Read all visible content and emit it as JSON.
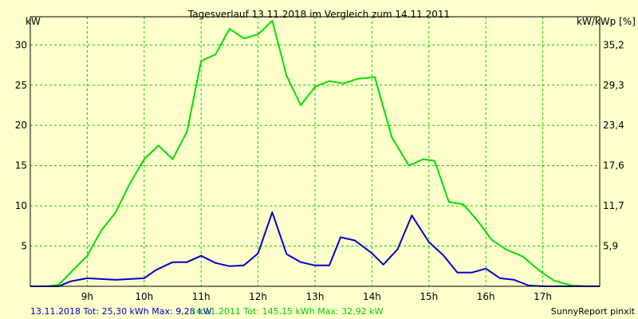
{
  "chart_data": {
    "type": "line",
    "title": "Tagesverlauf 13.11.2018 im Vergleich zum 14.11.2011",
    "ylabel_left": "kW",
    "ylabel_right": "kW/kWp [%]",
    "x_ticks": [
      "9h",
      "10h",
      "11h",
      "12h",
      "13h",
      "14h",
      "15h",
      "16h",
      "17h"
    ],
    "x_tick_values": [
      9,
      10,
      11,
      12,
      13,
      14,
      15,
      16,
      17
    ],
    "xlim": [
      8.0,
      18.0
    ],
    "ylim": [
      0,
      33.5
    ],
    "y_ticks_left": [
      5,
      10,
      15,
      20,
      25,
      30
    ],
    "y_ticks_right": [
      "5,9",
      "11,7",
      "17,6",
      "23,4",
      "29,3",
      "35,2"
    ],
    "grid": true,
    "colors": {
      "background": "#ffffcc",
      "grid": "#00cc00",
      "axis": "#000000"
    },
    "series": [
      {
        "id": "s2011",
        "color": "#00dd00",
        "values": [
          [
            8.0,
            0
          ],
          [
            8.3,
            0
          ],
          [
            8.5,
            0.2
          ],
          [
            8.75,
            2.0
          ],
          [
            9.0,
            3.8
          ],
          [
            9.25,
            7.0
          ],
          [
            9.5,
            9.2
          ],
          [
            9.75,
            12.8
          ],
          [
            10.0,
            15.8
          ],
          [
            10.25,
            17.5
          ],
          [
            10.5,
            15.8
          ],
          [
            10.75,
            19.2
          ],
          [
            11.0,
            28.0
          ],
          [
            11.25,
            28.8
          ],
          [
            11.5,
            32.0
          ],
          [
            11.75,
            30.8
          ],
          [
            12.0,
            31.3
          ],
          [
            12.25,
            33.0
          ],
          [
            12.5,
            26.2
          ],
          [
            12.75,
            22.5
          ],
          [
            13.0,
            24.8
          ],
          [
            13.25,
            25.5
          ],
          [
            13.5,
            25.2
          ],
          [
            13.75,
            25.8
          ],
          [
            14.05,
            26.0
          ],
          [
            14.35,
            18.5
          ],
          [
            14.65,
            15.0
          ],
          [
            14.9,
            15.8
          ],
          [
            15.1,
            15.6
          ],
          [
            15.35,
            10.5
          ],
          [
            15.6,
            10.2
          ],
          [
            15.85,
            8.2
          ],
          [
            16.1,
            5.8
          ],
          [
            16.35,
            4.6
          ],
          [
            16.65,
            3.7
          ],
          [
            16.95,
            1.9
          ],
          [
            17.2,
            0.7
          ],
          [
            17.5,
            0.1
          ],
          [
            17.8,
            0
          ],
          [
            18.0,
            0
          ]
        ]
      },
      {
        "id": "s2018",
        "color": "#0000cc",
        "values": [
          [
            8.0,
            0
          ],
          [
            8.5,
            0
          ],
          [
            8.7,
            0.6
          ],
          [
            9.0,
            1.0
          ],
          [
            9.25,
            0.9
          ],
          [
            9.5,
            0.8
          ],
          [
            9.75,
            0.9
          ],
          [
            10.0,
            1.0
          ],
          [
            10.2,
            2.0
          ],
          [
            10.5,
            3.0
          ],
          [
            10.75,
            3.0
          ],
          [
            11.0,
            3.8
          ],
          [
            11.25,
            2.9
          ],
          [
            11.5,
            2.5
          ],
          [
            11.75,
            2.6
          ],
          [
            12.0,
            4.1
          ],
          [
            12.25,
            9.2
          ],
          [
            12.5,
            4.0
          ],
          [
            12.75,
            3.0
          ],
          [
            13.0,
            2.6
          ],
          [
            13.25,
            2.6
          ],
          [
            13.45,
            6.1
          ],
          [
            13.7,
            5.7
          ],
          [
            14.0,
            4.1
          ],
          [
            14.2,
            2.7
          ],
          [
            14.45,
            4.6
          ],
          [
            14.7,
            8.8
          ],
          [
            15.0,
            5.5
          ],
          [
            15.25,
            3.9
          ],
          [
            15.5,
            1.7
          ],
          [
            15.75,
            1.7
          ],
          [
            16.0,
            2.2
          ],
          [
            16.25,
            1.0
          ],
          [
            16.5,
            0.8
          ],
          [
            16.75,
            0.1
          ],
          [
            17.0,
            0
          ],
          [
            18.0,
            0
          ]
        ]
      }
    ]
  },
  "footer": {
    "legend_2018": "13.11.2018 Tot: 25,30 kWh Max: 9,28 kW",
    "legend_2011": "14.11.2011 Tot: 145,15 kWh Max: 32,92 kW",
    "credit": "SunnyReport pinxit"
  }
}
